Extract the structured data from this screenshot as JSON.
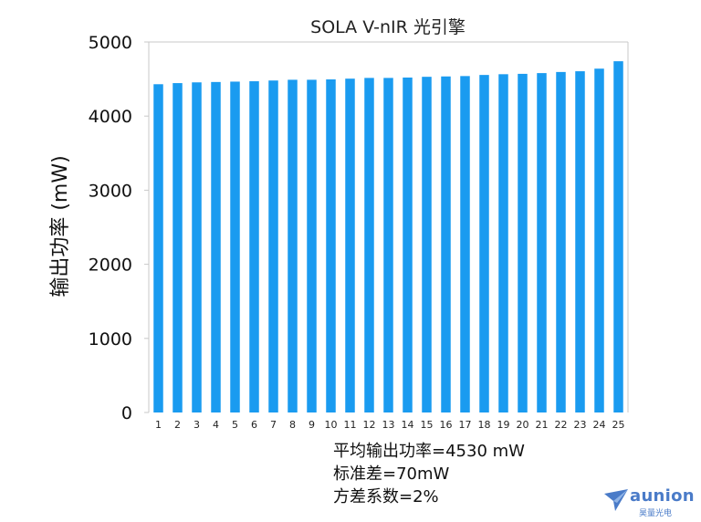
{
  "chart_data": {
    "type": "bar",
    "title": "SOLA V-nIR 光引擎",
    "ylabel": "输出功率 (mW)",
    "xlabel": "",
    "ylim": [
      0,
      5000
    ],
    "yticks": [
      0,
      1000,
      2000,
      3000,
      4000,
      5000
    ],
    "grid": false,
    "bar_color": "#1a9bf0",
    "categories": [
      "1",
      "2",
      "3",
      "4",
      "5",
      "6",
      "7",
      "8",
      "9",
      "10",
      "11",
      "12",
      "13",
      "14",
      "15",
      "16",
      "17",
      "18",
      "19",
      "20",
      "21",
      "22",
      "23",
      "24",
      "25"
    ],
    "values": [
      4430,
      4445,
      4455,
      4460,
      4465,
      4470,
      4480,
      4490,
      4490,
      4495,
      4505,
      4515,
      4515,
      4520,
      4530,
      4535,
      4540,
      4555,
      4565,
      4570,
      4580,
      4595,
      4605,
      4640,
      4740
    ]
  },
  "stats": {
    "line1": "平均输出功率=4530 mW",
    "line2": "标准差=70mW",
    "line3": "方差系数=2%"
  },
  "logo": {
    "name": "aunion",
    "subtitle": "昊量光电",
    "icon": "paper-plane-icon",
    "color": "#4a7bc8"
  }
}
